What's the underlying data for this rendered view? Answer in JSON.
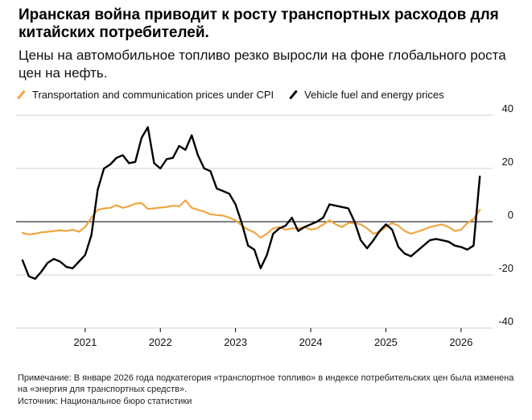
{
  "title": "Иранская война приводит к росту транспортных расходов для китайских потребителей.",
  "subtitle": "Цены на автомобильное топливо резко выросли на фоне глобального роста цен на нефть.",
  "footnote": "Примечание: В январе 2026 года подкатегория «транспортное топливо» в индексе потребительских цен была изменена на «энергия для транспортных средств».",
  "source": "Источник: Национальное бюро статистики",
  "colors": {
    "orange": "#F0A541",
    "black": "#000000",
    "grid": "#D0D0D0",
    "zero": "#000000"
  },
  "chart_data": {
    "type": "line",
    "x_range": [
      "2020-03",
      "2026-05"
    ],
    "ylim": [
      -40,
      40
    ],
    "y_ticks": [
      40,
      20,
      0,
      -20,
      -40
    ],
    "y_axis_position": "right",
    "x_ticks": [
      "2021",
      "2022",
      "2023",
      "2024",
      "2025",
      "2026"
    ],
    "grid": "horizontal",
    "legend_placement": "top-left",
    "series": [
      {
        "name": "Transportation and communication prices under CPI",
        "color": "#F0A541",
        "x": [
          "2020-03",
          "2020-04",
          "2020-05",
          "2020-06",
          "2020-07",
          "2020-08",
          "2020-09",
          "2020-10",
          "2020-11",
          "2020-12",
          "2021-01",
          "2021-02",
          "2021-03",
          "2021-04",
          "2021-05",
          "2021-06",
          "2021-07",
          "2021-08",
          "2021-09",
          "2021-10",
          "2021-11",
          "2021-12",
          "2022-01",
          "2022-02",
          "2022-03",
          "2022-04",
          "2022-05",
          "2022-06",
          "2022-07",
          "2022-08",
          "2022-09",
          "2022-10",
          "2022-11",
          "2022-12",
          "2023-01",
          "2023-02",
          "2023-03",
          "2023-04",
          "2023-05",
          "2023-06",
          "2023-07",
          "2023-08",
          "2023-09",
          "2023-10",
          "2023-11",
          "2023-12",
          "2024-01",
          "2024-02",
          "2024-03",
          "2024-04",
          "2024-05",
          "2024-06",
          "2024-07",
          "2024-08",
          "2024-09",
          "2024-10",
          "2024-11",
          "2024-12",
          "2025-01",
          "2025-02",
          "2025-03",
          "2025-04",
          "2025-05",
          "2025-06",
          "2025-07",
          "2025-08",
          "2025-09",
          "2025-10",
          "2025-11",
          "2025-12",
          "2026-01",
          "2026-02",
          "2026-03",
          "2026-04"
        ],
        "values": [
          -4.2,
          -4.8,
          -4.5,
          -4.0,
          -3.8,
          -3.5,
          -3.2,
          -3.5,
          -3.0,
          -3.8,
          -2.0,
          1.5,
          4.5,
          5.0,
          5.2,
          6.2,
          5.2,
          5.8,
          6.8,
          7.0,
          4.8,
          5.0,
          5.3,
          5.5,
          6.0,
          5.8,
          8.0,
          5.2,
          4.5,
          3.8,
          2.8,
          2.5,
          2.3,
          1.5,
          0.5,
          -1.5,
          -3.0,
          -4.0,
          -6.0,
          -4.5,
          -2.5,
          -2.0,
          -3.0,
          -2.5,
          -2.5,
          -2.0,
          -3.0,
          -2.5,
          -1.0,
          0.5,
          -1.0,
          -2.0,
          -0.5,
          -0.5,
          -1.0,
          -2.5,
          -4.5,
          -3.8,
          -2.0,
          -0.5,
          -1.5,
          -3.5,
          -4.5,
          -3.8,
          -3.0,
          -2.0,
          -1.5,
          -1.0,
          -2.0,
          -3.5,
          -3.0,
          -0.5,
          1.0,
          4.5
        ]
      },
      {
        "name": "Vehicle fuel and energy prices",
        "color": "#000000",
        "x": [
          "2020-03",
          "2020-04",
          "2020-05",
          "2020-06",
          "2020-07",
          "2020-08",
          "2020-09",
          "2020-10",
          "2020-11",
          "2020-12",
          "2021-01",
          "2021-02",
          "2021-03",
          "2021-04",
          "2021-05",
          "2021-06",
          "2021-07",
          "2021-08",
          "2021-09",
          "2021-10",
          "2021-11",
          "2021-12",
          "2022-01",
          "2022-02",
          "2022-03",
          "2022-04",
          "2022-05",
          "2022-06",
          "2022-07",
          "2022-08",
          "2022-09",
          "2022-10",
          "2022-11",
          "2022-12",
          "2023-01",
          "2023-02",
          "2023-03",
          "2023-04",
          "2023-05",
          "2023-06",
          "2023-07",
          "2023-08",
          "2023-09",
          "2023-10",
          "2023-11",
          "2023-12",
          "2024-01",
          "2024-02",
          "2024-03",
          "2024-04",
          "2024-05",
          "2024-06",
          "2024-07",
          "2024-08",
          "2024-09",
          "2024-10",
          "2024-11",
          "2024-12",
          "2025-01",
          "2025-02",
          "2025-03",
          "2025-04",
          "2025-05",
          "2025-06",
          "2025-07",
          "2025-08",
          "2025-09",
          "2025-10",
          "2025-11",
          "2025-12",
          "2026-01",
          "2026-02",
          "2026-03",
          "2026-04"
        ],
        "values": [
          -14.5,
          -20.5,
          -21.5,
          -18.8,
          -15.5,
          -14.0,
          -15.0,
          -17.0,
          -17.5,
          -15.0,
          -12.5,
          -5.0,
          12.0,
          20.0,
          21.5,
          24.0,
          25.0,
          22.0,
          22.5,
          31.5,
          35.5,
          22.0,
          20.0,
          23.5,
          24.0,
          28.5,
          27.0,
          32.5,
          25.0,
          20.0,
          19.0,
          12.5,
          11.5,
          10.5,
          6.5,
          -0.5,
          -9.0,
          -10.5,
          -17.5,
          -12.5,
          -4.5,
          -2.5,
          -1.5,
          1.5,
          -3.5,
          -2.0,
          -1.0,
          0.0,
          1.5,
          6.5,
          6.0,
          5.5,
          5.0,
          0.0,
          -7.0,
          -10.0,
          -7.0,
          -3.5,
          -1.0,
          -3.0,
          -9.5,
          -12.0,
          -13.0,
          -11.0,
          -9.0,
          -7.0,
          -6.5,
          -7.0,
          -7.5,
          -9.0,
          -9.5,
          -10.5,
          -9.0,
          17.0
        ]
      }
    ]
  }
}
